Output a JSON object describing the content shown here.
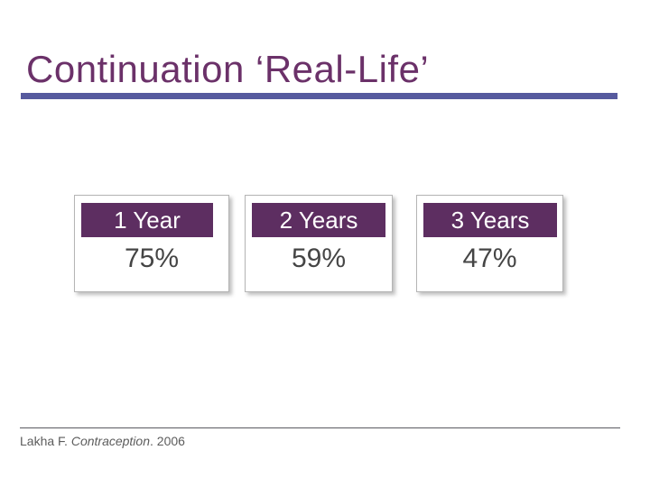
{
  "slide": {
    "title": "Continuation ‘Real-Life’",
    "boxes": [
      {
        "label": "1 Year",
        "value": "75%"
      },
      {
        "label": "2 Years",
        "value": "59%"
      },
      {
        "label": "3 Years",
        "value": "47%"
      }
    ],
    "footer": {
      "author": "Lakha F. ",
      "journal": "Contraception",
      "year": ". 2006"
    },
    "colors": {
      "title_text": "#6B3169",
      "title_underline": "#565A9E",
      "box_header_bg": "#5D2E61",
      "box_header_text": "#FFFFFF",
      "box_value_text": "#454545",
      "box_border": "#B5B5B5",
      "footer_text": "#5C5C5C"
    }
  }
}
